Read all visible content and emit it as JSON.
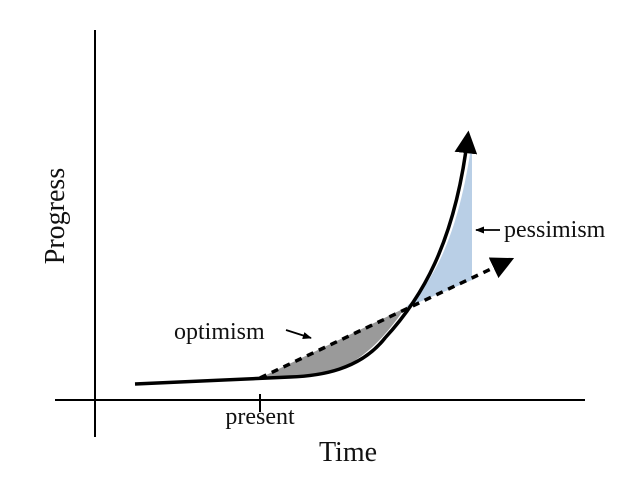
{
  "diagram": {
    "ylabel": "Progress",
    "xlabel": "Time",
    "present_label": "present",
    "optimism_label": "optimism",
    "pessimism_label": "pessimism"
  },
  "colors": {
    "axis": "#000000",
    "curve": "#000000",
    "optimism_fill": "#9a9a9a",
    "pessimism_fill": "#b9cfe6"
  },
  "icons": {
    "curve_arrow": "arrowhead",
    "trend_arrow": "arrowhead",
    "annotation_arrow": "small-arrow"
  }
}
